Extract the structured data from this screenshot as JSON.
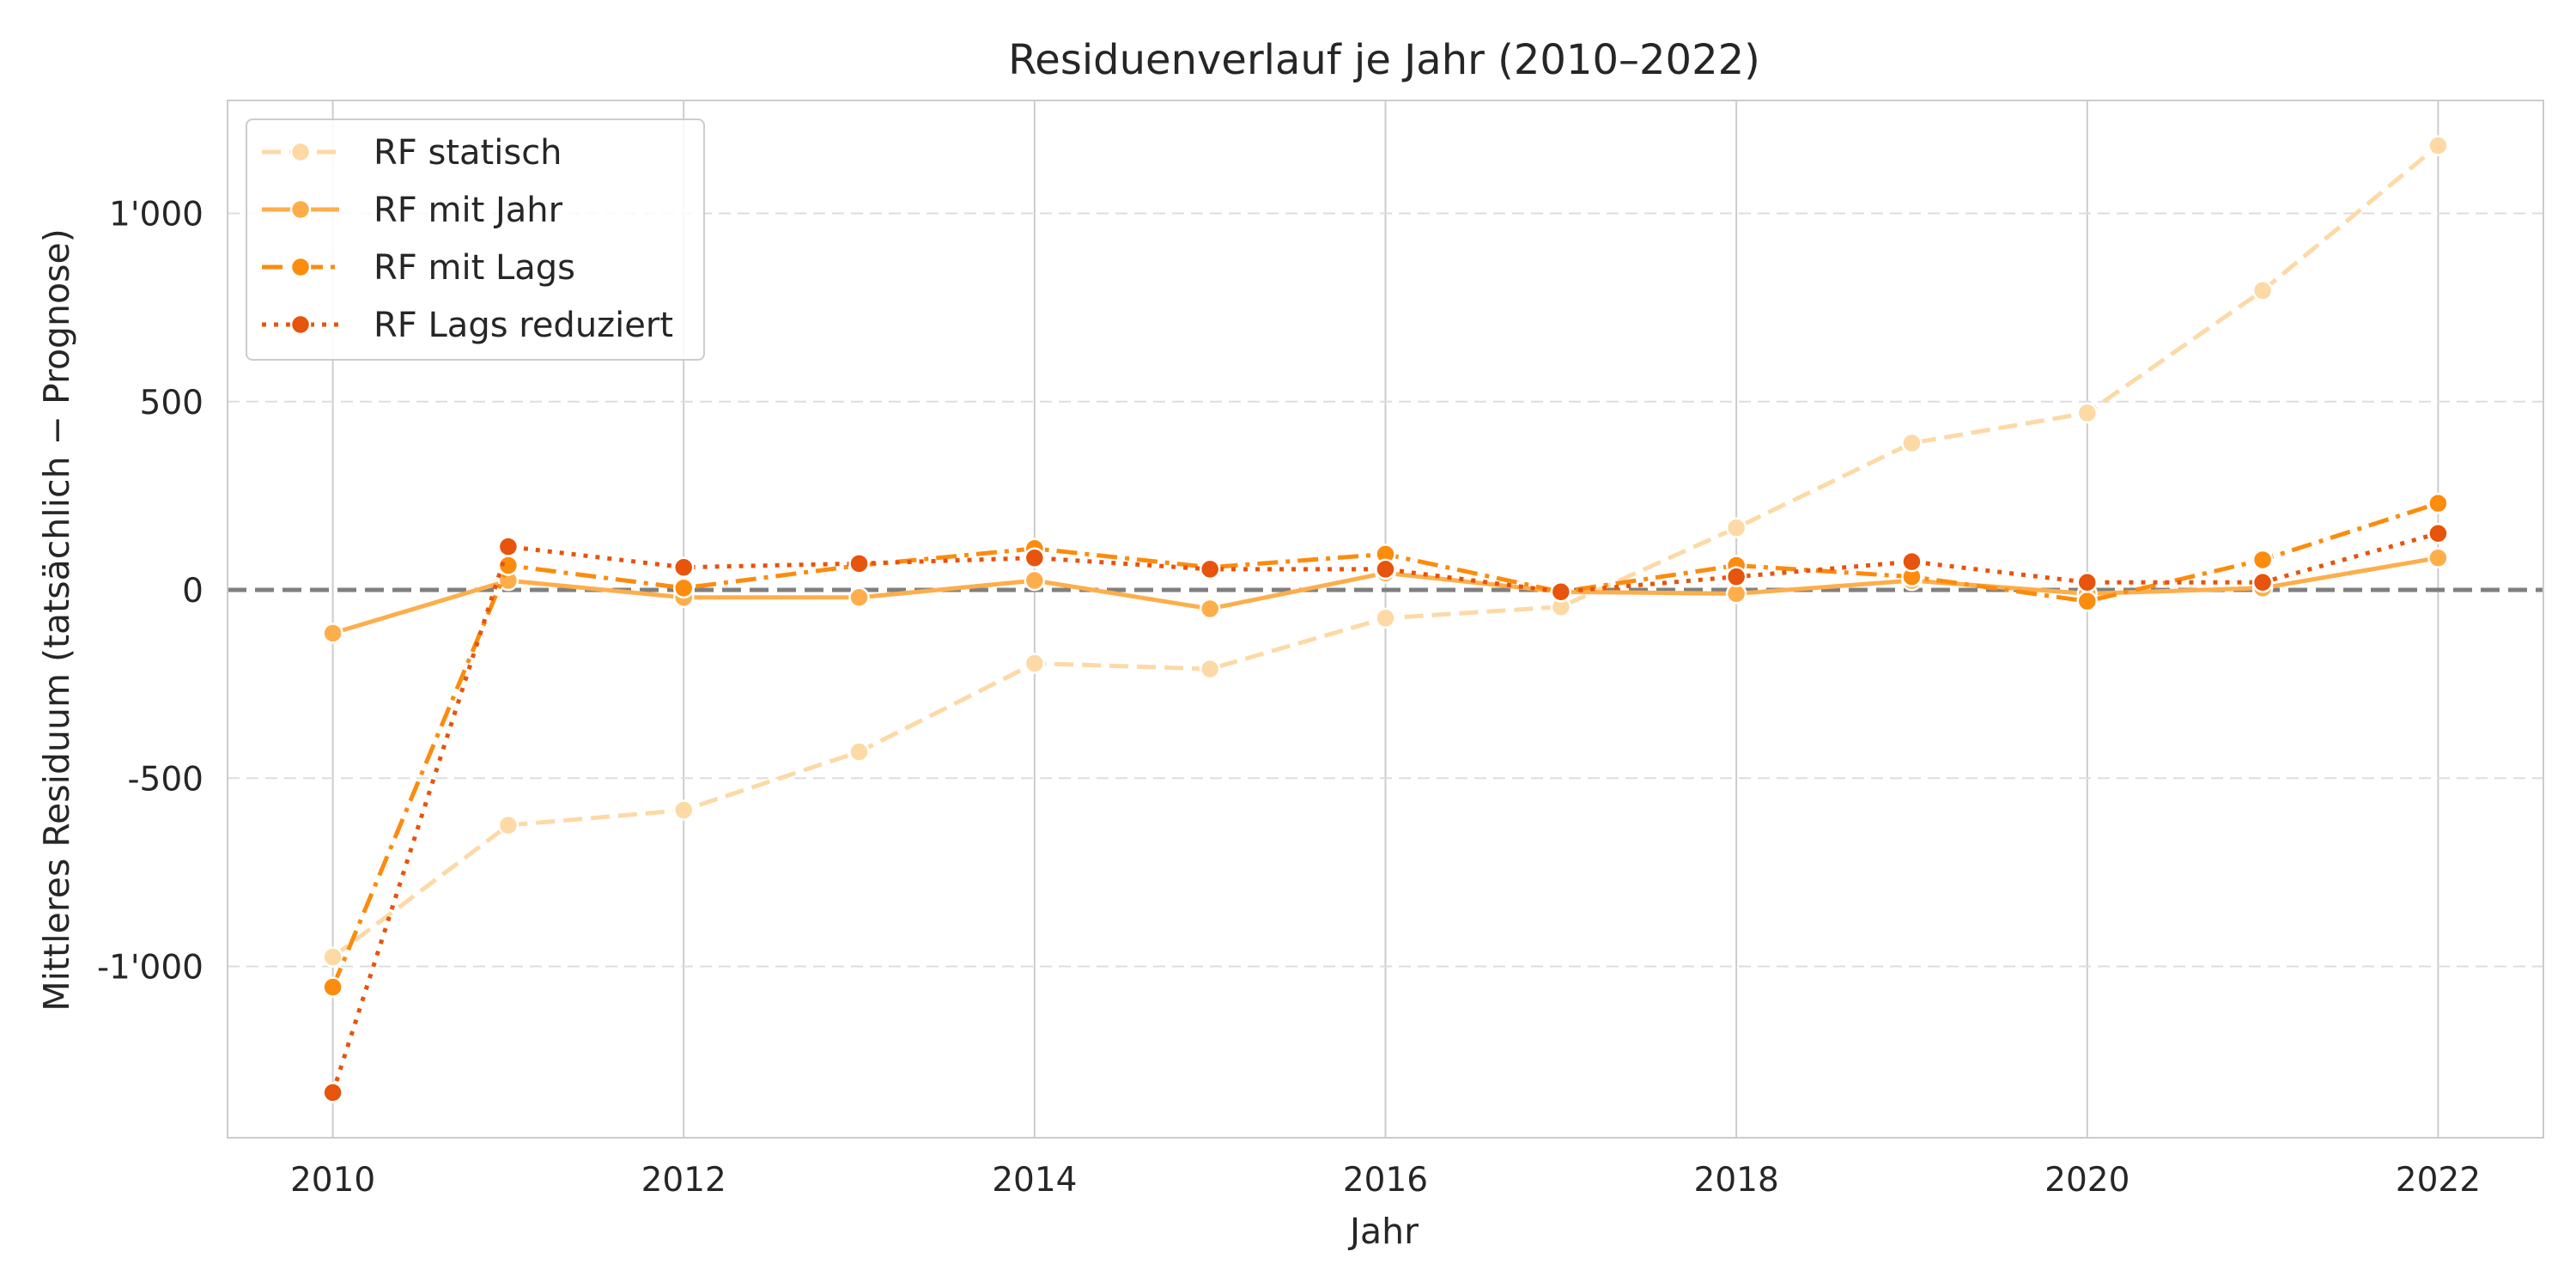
{
  "chart_data": {
    "type": "line",
    "title": "Residuenverlauf je Jahr (2010–2022)",
    "xlabel": "Jahr",
    "ylabel": "Mittleres Residuum (tatsächlich − Prognose)",
    "x": [
      2010,
      2011,
      2012,
      2013,
      2014,
      2015,
      2016,
      2017,
      2018,
      2019,
      2020,
      2021,
      2022
    ],
    "xlim": [
      2009.4,
      2022.6
    ],
    "ylim": [
      -1455,
      1300
    ],
    "xticks": [
      2010,
      2012,
      2014,
      2016,
      2018,
      2020,
      2022
    ],
    "xtick_labels": [
      "2010",
      "2012",
      "2014",
      "2016",
      "2018",
      "2020",
      "2022"
    ],
    "yticks": [
      -1000,
      -500,
      0,
      500,
      1000
    ],
    "ytick_labels": [
      "-1'000",
      "-500",
      "0",
      "500",
      "1'000"
    ],
    "reference_line": 0,
    "grid": true,
    "legend_position": "top-left",
    "series": [
      {
        "name": "RF statisch",
        "color": "#fdd9a6",
        "dash": "dashed",
        "values": [
          -975,
          -625,
          -585,
          -430,
          -195,
          -210,
          -75,
          -45,
          165,
          390,
          470,
          795,
          1180
        ]
      },
      {
        "name": "RF mit Jahr",
        "color": "#fdae4b",
        "dash": "solid",
        "values": [
          -115,
          25,
          -20,
          -20,
          25,
          -50,
          45,
          -5,
          -10,
          25,
          -10,
          5,
          85
        ]
      },
      {
        "name": "RF mit Lags",
        "color": "#fb8c0e",
        "dash": "dashdot",
        "values": [
          -1055,
          65,
          5,
          65,
          110,
          60,
          95,
          -5,
          65,
          35,
          -30,
          80,
          230
        ]
      },
      {
        "name": "RF Lags reduziert",
        "color": "#e6540d",
        "dash": "dotted",
        "values": [
          -1335,
          115,
          60,
          70,
          85,
          55,
          55,
          -5,
          35,
          75,
          20,
          20,
          150
        ]
      }
    ]
  }
}
